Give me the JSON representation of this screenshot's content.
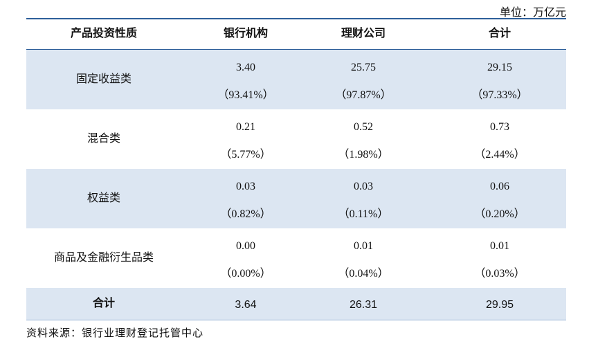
{
  "table": {
    "unit": "单位：万亿元",
    "header": [
      "产品投资性质",
      "银行机构",
      "理财公司",
      "合计"
    ],
    "rows": [
      {
        "label": "固定收益类",
        "cells": [
          [
            "3.40",
            "（93.41%）"
          ],
          [
            "25.75",
            "（97.87%）"
          ],
          [
            "29.15",
            "（97.33%）"
          ]
        ]
      },
      {
        "label": "混合类",
        "cells": [
          [
            "0.21",
            "（5.77%）"
          ],
          [
            "0.52",
            "（1.98%）"
          ],
          [
            "0.73",
            "（2.44%）"
          ]
        ]
      },
      {
        "label": "权益类",
        "cells": [
          [
            "0.03",
            "（0.82%）"
          ],
          [
            "0.03",
            "（0.11%）"
          ],
          [
            "0.06",
            "（0.20%）"
          ]
        ]
      },
      {
        "label": "商品及金融衍生品类",
        "cells": [
          [
            "0.00",
            "（0.00%）"
          ],
          [
            "0.01",
            "（0.04%）"
          ],
          [
            "0.01",
            "（0.03%）"
          ]
        ]
      }
    ],
    "total": {
      "label": "合计",
      "cells": [
        "3.64",
        "26.31",
        "29.95"
      ]
    },
    "source": "资料来源：银行业理财登记托管中心"
  }
}
